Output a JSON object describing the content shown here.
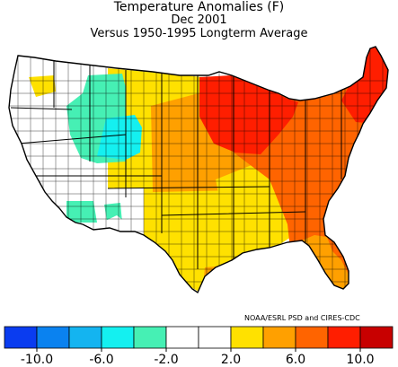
{
  "title": "Temperature Anomalies (F)",
  "subtitle_period": "Dec 2001",
  "subtitle_baseline": "Versus 1950-1995 Longterm Average",
  "credit": "NOAA/ESRL PSD and CIRES-CDC",
  "units": "F",
  "legend": {
    "bins": [
      {
        "color": "#0a3cf0"
      },
      {
        "color": "#0a82f0"
      },
      {
        "color": "#14b4f0"
      },
      {
        "color": "#14f0f0"
      },
      {
        "color": "#46f0b4"
      },
      {
        "color": "#ffffff"
      },
      {
        "color": "#ffffff"
      },
      {
        "color": "#ffe100"
      },
      {
        "color": "#ffa000"
      },
      {
        "color": "#ff6400"
      },
      {
        "color": "#ff1e00"
      },
      {
        "color": "#c80000"
      }
    ],
    "tick_labels": [
      "-10.0",
      "-6.0",
      "-2.0",
      "2.0",
      "6.0",
      "10.0"
    ]
  },
  "regions": [
    {
      "name": "pacific-northwest",
      "anomaly_bin": "white"
    },
    {
      "name": "california-great-basin",
      "anomaly_bin": "white"
    },
    {
      "name": "eastern-oregon-pocket",
      "anomaly_bin": "yellow"
    },
    {
      "name": "idaho-utah-band",
      "anomaly_bin": "aqua-green"
    },
    {
      "name": "wyoming-colorado",
      "anomaly_bin": "cyan"
    },
    {
      "name": "southwest-arizona",
      "anomaly_bin": "aqua-green"
    },
    {
      "name": "northern-plains",
      "anomaly_bin": "yellow"
    },
    {
      "name": "southern-plains-texas",
      "anomaly_bin": "yellow"
    },
    {
      "name": "central-midwest",
      "anomaly_bin": "orange"
    },
    {
      "name": "upper-midwest",
      "anomaly_bin": "red"
    },
    {
      "name": "east-and-southeast",
      "anomaly_bin": "red-orange"
    },
    {
      "name": "florida",
      "anomaly_bin": "orange"
    },
    {
      "name": "new-england",
      "anomaly_bin": "red"
    }
  ],
  "colors": {
    "white": "#ffffff",
    "yellow": "#ffe100",
    "orange": "#ffa000",
    "red-orange": "#ff6400",
    "red": "#ff1e00",
    "cyan": "#14f0f0",
    "aqua-green": "#46f0b4",
    "outline": "#000000"
  }
}
